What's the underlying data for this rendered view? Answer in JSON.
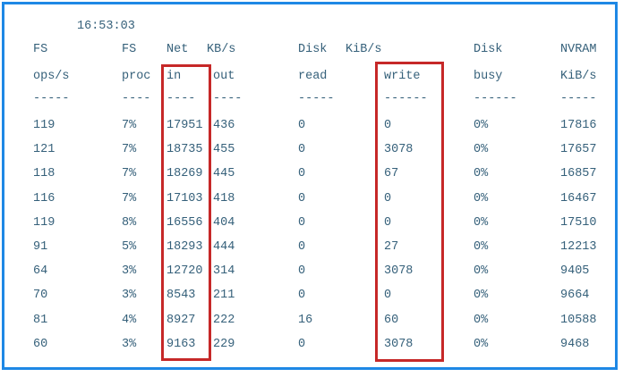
{
  "timestamp": "16:53:03",
  "header_row1": [
    "FS",
    "FS",
    "Net",
    "KB/s",
    "",
    "Disk",
    "KiB/s",
    "",
    "Disk",
    "NVRAM"
  ],
  "header_row2": [
    "ops/s",
    "proc",
    "in",
    "out",
    "",
    "read",
    "",
    "write",
    "busy",
    "KiB/s"
  ],
  "separators": [
    "-----",
    "----",
    "----",
    "----",
    "",
    "-----",
    "",
    "------",
    "------",
    "-----"
  ],
  "rows": [
    [
      "119",
      "7%",
      "17951",
      "436",
      "0",
      "0",
      "0%",
      "17816"
    ],
    [
      "121",
      "7%",
      "18735",
      "455",
      "0",
      "3078",
      "0%",
      "17657"
    ],
    [
      "118",
      "7%",
      "18269",
      "445",
      "0",
      "67",
      "0%",
      "16857"
    ],
    [
      "116",
      "7%",
      "17103",
      "418",
      "0",
      "0",
      "0%",
      "16467"
    ],
    [
      "119",
      "8%",
      "16556",
      "404",
      "0",
      "0",
      "0%",
      "17510"
    ],
    [
      "91",
      "5%",
      "18293",
      "444",
      "0",
      "27",
      "0%",
      "12213"
    ],
    [
      "64",
      "3%",
      "12720",
      "314",
      "0",
      "3078",
      "0%",
      "9405"
    ],
    [
      "70",
      "3%",
      "8543",
      "211",
      "0",
      "0",
      "0%",
      "9664"
    ],
    [
      "81",
      "4%",
      "8927",
      "222",
      "16",
      "60",
      "0%",
      "10588"
    ],
    [
      "60",
      "3%",
      "9163",
      "229",
      "0",
      "3078",
      "0%",
      "9468"
    ]
  ],
  "colors": {
    "frame": "#1e88e5",
    "highlight": "#c62828",
    "text": "#35607a"
  }
}
